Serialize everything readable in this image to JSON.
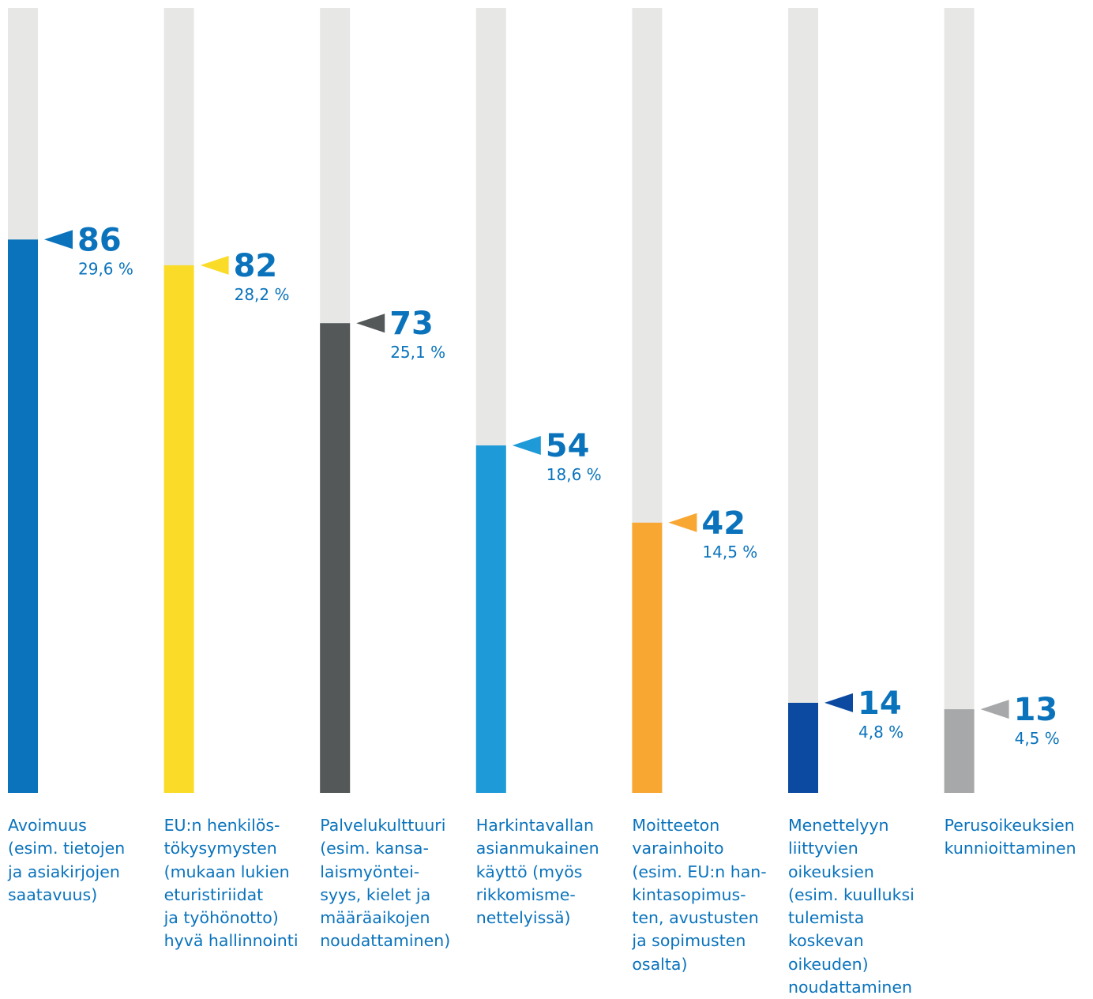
{
  "chart_data": {
    "type": "bar",
    "title": "",
    "xlabel": "",
    "ylabel": "",
    "ylim": [
      0,
      122
    ],
    "grid": false,
    "legend": "none",
    "categories": [
      "Avoimuus\n(esim. tietojen\nja asiakirjojen\nsaatavuus)",
      "EU:n henkilös-\ntökysymysten\n(mukaan lukien\neturistiriidat\nja työhönotto)\nhyvä hallinnointi",
      "Palvelukulttuuri\n(esim. kansa-\nlaismyöntei-\nsyys, kielet ja\nmääräaikojen\nnoudattaminen)",
      "Harkintavallan\nasianmukainen\nkäyttö (myös\nrikkomisme-\nnettelyissä)",
      "Moitteeton\nvarainhoito\n(esim. EU:n han-\nkintasopimus-\nten, avustusten\nja sopimusten\nosalta)",
      "Menettelyyn\nliittyvien\noikeuksien\n(esim. kuulluksi\ntulemista\nkoskevan\noikeuden)\nnoudattaminen",
      "Perusoikeuksien\nkunnioittaminen"
    ],
    "values": [
      86,
      82,
      73,
      54,
      42,
      14,
      13
    ],
    "value_labels": [
      "86",
      "82",
      "73",
      "54",
      "42",
      "14",
      "13"
    ],
    "percentages": [
      "29,6 %",
      "28,2 %",
      "25,1 %",
      "18,6 %",
      "14,5 %",
      "4,8 %",
      "4,5 %"
    ],
    "colors": [
      "#0a73bc",
      "#fadc28",
      "#545859",
      "#1f9ad8",
      "#f9a733",
      "#0b4aa0",
      "#a7a8a9"
    ],
    "track_color": "#e7e8e6",
    "text_color": "#0a73bc"
  }
}
